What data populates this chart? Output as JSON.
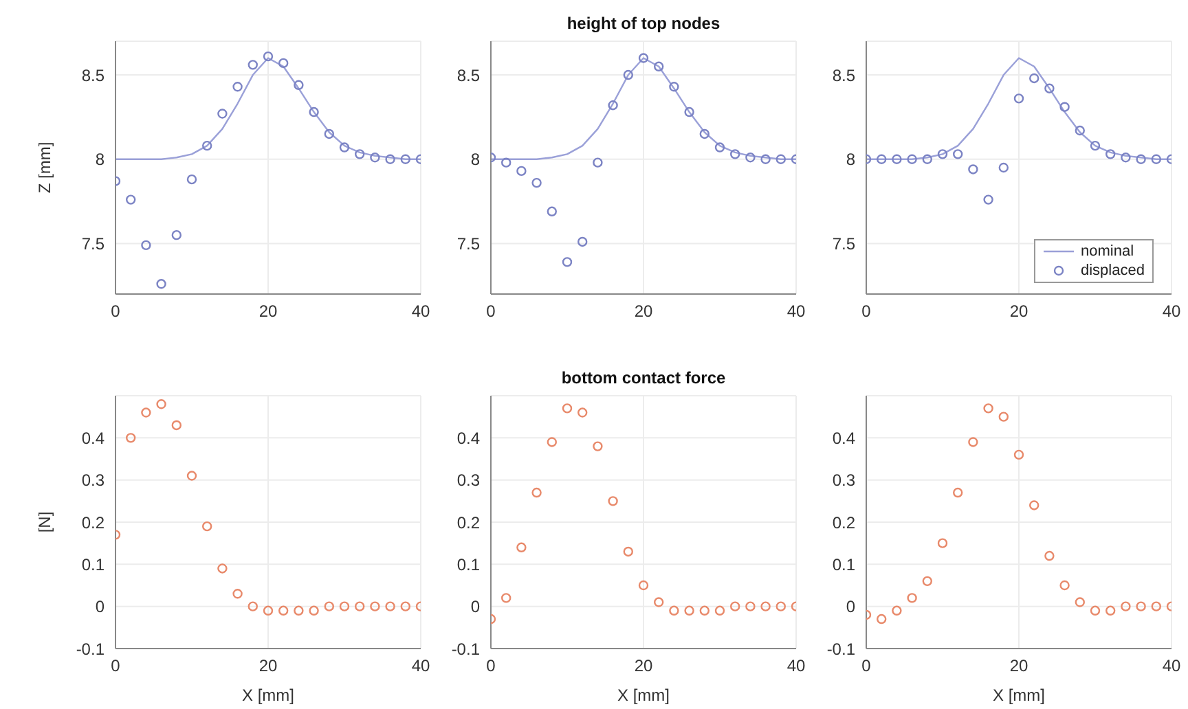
{
  "chart_data": [
    {
      "type": "scatter",
      "ylabel": "Z [mm]",
      "x": [
        0,
        2,
        4,
        6,
        8,
        10,
        12,
        14,
        16,
        18,
        20,
        22,
        24,
        26,
        28,
        30,
        32,
        34,
        36,
        38,
        40
      ],
      "xlim": [
        0,
        40
      ],
      "xticks": [
        0,
        20,
        40
      ],
      "ylim": [
        7.2,
        8.7
      ],
      "yticks": [
        7.5,
        8,
        8.5
      ],
      "grid": true,
      "marker": "circle",
      "series": [
        {
          "type": "line",
          "marker": "none",
          "color": "#9aa0d8",
          "line_style": "solid",
          "values": [
            8,
            8,
            8,
            8,
            8.01,
            8.03,
            8.08,
            8.18,
            8.33,
            8.5,
            8.6,
            8.55,
            8.42,
            8.28,
            8.16,
            8.08,
            8.04,
            8.02,
            8.01,
            8,
            8
          ]
        },
        {
          "color": "#7b83c4",
          "values": [
            7.87,
            7.76,
            7.49,
            7.26,
            7.55,
            7.88,
            8.08,
            8.27,
            8.43,
            8.56,
            8.61,
            8.57,
            8.44,
            8.28,
            8.15,
            8.07,
            8.03,
            8.01,
            8,
            8,
            8
          ]
        }
      ]
    },
    {
      "type": "scatter",
      "title": "height of top nodes",
      "x": [
        0,
        2,
        4,
        6,
        8,
        10,
        12,
        14,
        16,
        18,
        20,
        22,
        24,
        26,
        28,
        30,
        32,
        34,
        36,
        38,
        40
      ],
      "xlim": [
        0,
        40
      ],
      "xticks": [
        0,
        20,
        40
      ],
      "ylim": [
        7.2,
        8.7
      ],
      "yticks": [
        7.5,
        8,
        8.5
      ],
      "grid": true,
      "marker": "circle",
      "series": [
        {
          "type": "line",
          "marker": "none",
          "color": "#9aa0d8",
          "line_style": "solid",
          "values": [
            8,
            8,
            8,
            8,
            8.01,
            8.03,
            8.08,
            8.18,
            8.33,
            8.5,
            8.6,
            8.55,
            8.42,
            8.28,
            8.16,
            8.08,
            8.04,
            8.02,
            8.01,
            8,
            8
          ]
        },
        {
          "color": "#7b83c4",
          "values": [
            8.01,
            7.98,
            7.93,
            7.86,
            7.69,
            7.39,
            7.51,
            7.98,
            8.32,
            8.5,
            8.6,
            8.55,
            8.43,
            8.28,
            8.15,
            8.07,
            8.03,
            8.01,
            8,
            8,
            8
          ]
        }
      ]
    },
    {
      "type": "scatter",
      "x": [
        0,
        2,
        4,
        6,
        8,
        10,
        12,
        14,
        16,
        18,
        20,
        22,
        24,
        26,
        28,
        30,
        32,
        34,
        36,
        38,
        40
      ],
      "xlim": [
        0,
        40
      ],
      "xticks": [
        0,
        20,
        40
      ],
      "ylim": [
        7.2,
        8.7
      ],
      "yticks": [
        7.5,
        8,
        8.5
      ],
      "grid": true,
      "marker": "circle",
      "legend": "bottom right",
      "series": [
        {
          "type": "line",
          "marker": "none",
          "name": "nominal",
          "color": "#9aa0d8",
          "line_style": "solid",
          "values": [
            8,
            8,
            8,
            8,
            8.01,
            8.03,
            8.08,
            8.18,
            8.33,
            8.5,
            8.6,
            8.55,
            8.42,
            8.28,
            8.16,
            8.08,
            8.04,
            8.02,
            8.01,
            8,
            8
          ]
        },
        {
          "name": "displaced",
          "color": "#7b83c4",
          "values": [
            8,
            8,
            8,
            8,
            8,
            8.03,
            8.03,
            7.94,
            7.76,
            7.95,
            8.36,
            8.48,
            8.42,
            8.31,
            8.17,
            8.08,
            8.03,
            8.01,
            8,
            8,
            8
          ]
        }
      ]
    },
    {
      "type": "scatter",
      "xlabel": "X [mm]",
      "ylabel": "[N]",
      "x": [
        0,
        2,
        4,
        6,
        8,
        10,
        12,
        14,
        16,
        18,
        20,
        22,
        24,
        26,
        28,
        30,
        32,
        34,
        36,
        38,
        40
      ],
      "xlim": [
        0,
        40
      ],
      "xticks": [
        0,
        20,
        40
      ],
      "ylim": [
        -0.1,
        0.5
      ],
      "yticks": [
        -0.1,
        0,
        0.1,
        0.2,
        0.3,
        0.4
      ],
      "grid": true,
      "marker": "circle",
      "series": [
        {
          "color": "#e8896a",
          "values": [
            0.17,
            0.4,
            0.46,
            0.48,
            0.43,
            0.31,
            0.19,
            0.09,
            0.03,
            0,
            -0.01,
            -0.01,
            -0.01,
            -0.01,
            0,
            0,
            0,
            0,
            0,
            0,
            0
          ]
        }
      ]
    },
    {
      "type": "scatter",
      "title": "bottom contact force",
      "xlabel": "X [mm]",
      "x": [
        0,
        2,
        4,
        6,
        8,
        10,
        12,
        14,
        16,
        18,
        20,
        22,
        24,
        26,
        28,
        30,
        32,
        34,
        36,
        38,
        40
      ],
      "xlim": [
        0,
        40
      ],
      "xticks": [
        0,
        20,
        40
      ],
      "ylim": [
        -0.1,
        0.5
      ],
      "yticks": [
        -0.1,
        0,
        0.1,
        0.2,
        0.3,
        0.4
      ],
      "grid": true,
      "marker": "circle",
      "series": [
        {
          "color": "#e8896a",
          "values": [
            -0.03,
            0.02,
            0.14,
            0.27,
            0.39,
            0.47,
            0.46,
            0.38,
            0.25,
            0.13,
            0.05,
            0.01,
            -0.01,
            -0.01,
            -0.01,
            -0.01,
            0,
            0,
            0,
            0,
            0
          ]
        }
      ]
    },
    {
      "type": "scatter",
      "xlabel": "X [mm]",
      "x": [
        0,
        2,
        4,
        6,
        8,
        10,
        12,
        14,
        16,
        18,
        20,
        22,
        24,
        26,
        28,
        30,
        32,
        34,
        36,
        38,
        40
      ],
      "xlim": [
        0,
        40
      ],
      "xticks": [
        0,
        20,
        40
      ],
      "ylim": [
        -0.1,
        0.5
      ],
      "yticks": [
        -0.1,
        0,
        0.1,
        0.2,
        0.3,
        0.4
      ],
      "grid": true,
      "marker": "circle",
      "series": [
        {
          "color": "#e8896a",
          "values": [
            -0.02,
            -0.03,
            -0.01,
            0.02,
            0.06,
            0.15,
            0.27,
            0.39,
            0.47,
            0.45,
            0.36,
            0.24,
            0.12,
            0.05,
            0.01,
            -0.01,
            -0.01,
            0,
            0,
            0,
            0
          ]
        }
      ]
    }
  ]
}
